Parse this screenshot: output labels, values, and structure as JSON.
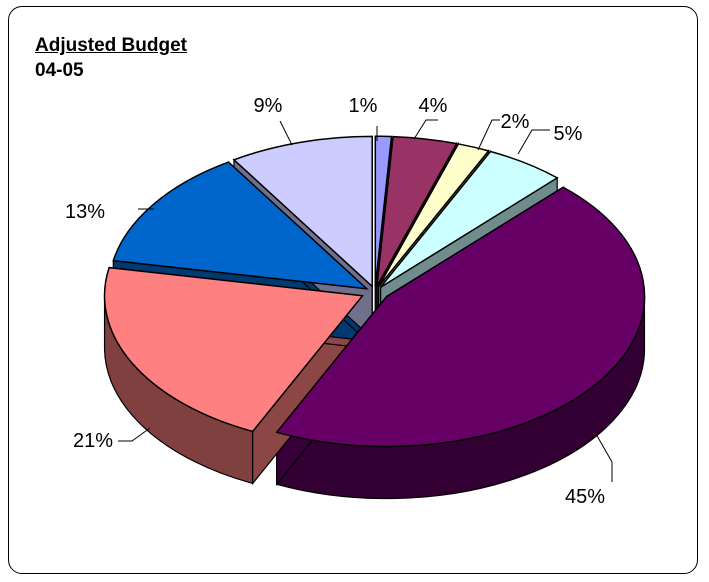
{
  "chart_data": {
    "type": "pie",
    "title": "Adjusted Budget",
    "subtitle": "04-05",
    "three_d": true,
    "exploded": true,
    "legend": "none",
    "slices": [
      {
        "label": "1%",
        "value": 1,
        "color": "#9999FF"
      },
      {
        "label": "4%",
        "value": 4,
        "color": "#993366"
      },
      {
        "label": "2%",
        "value": 2,
        "color": "#FFFFCC"
      },
      {
        "label": "5%",
        "value": 5,
        "color": "#CCFFFF"
      },
      {
        "label": "45%",
        "value": 45,
        "color": "#660066"
      },
      {
        "label": "21%",
        "value": 21,
        "color": "#FF8080"
      },
      {
        "label": "13%",
        "value": 13,
        "color": "#0066CC"
      },
      {
        "label": "9%",
        "value": 9,
        "color": "#CCCCFF"
      }
    ]
  }
}
